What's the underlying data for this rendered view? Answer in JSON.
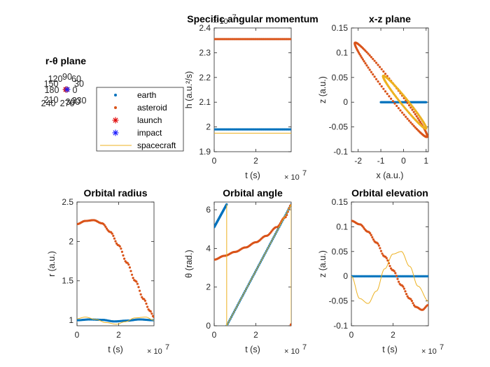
{
  "colors": {
    "earth": "#0072BD",
    "asteroid": "#D95319",
    "spacecraft": "#EDB120",
    "launch": "#e00000",
    "impact": "#1a1aff",
    "axis": "#262626"
  },
  "legend": {
    "items": [
      {
        "label": "earth",
        "marker": "dot",
        "color": "#0072BD"
      },
      {
        "label": "asteroid",
        "marker": "dot",
        "color": "#D95319"
      },
      {
        "label": "launch",
        "marker": "asterisk",
        "color": "#e00000"
      },
      {
        "label": "impact",
        "marker": "asterisk",
        "color": "#1a1aff"
      },
      {
        "label": "spacecraft",
        "marker": "line",
        "color": "#EDB120"
      }
    ]
  },
  "chart_data": [
    {
      "id": "polar",
      "type": "scatter",
      "title": "r-θ plane",
      "polar": true,
      "angle_labels": [
        "90",
        "60",
        "30",
        "0",
        "330",
        "300",
        "270",
        "240",
        "210",
        "180",
        "150",
        "120"
      ]
    },
    {
      "id": "h",
      "type": "line",
      "title": "Specific angular momentum",
      "xlabel": "t (s)",
      "ylabel": "h (a.u.²/s)",
      "xexp": "× 10",
      "xexp_pow": "7",
      "yexp": "× 10",
      "yexp_pow": "-7",
      "xlim": [
        0,
        3.7
      ],
      "ylim": [
        1.9,
        2.4
      ],
      "xticks": [
        0,
        2
      ],
      "yticks": [
        1.9,
        2.0,
        2.1,
        2.2,
        2.3,
        2.4
      ],
      "series": [
        {
          "name": "earth",
          "style": "dots",
          "color": "#0072BD",
          "x": [
            0,
            3.7
          ],
          "y": [
            1.99,
            1.99
          ]
        },
        {
          "name": "asteroid",
          "style": "dots",
          "color": "#D95319",
          "x": [
            0,
            3.7
          ],
          "y": [
            2.355,
            2.355
          ]
        },
        {
          "name": "spacecraft",
          "style": "line",
          "color": "#EDB120",
          "x": [
            0,
            3.7
          ],
          "y": [
            1.975,
            1.975
          ]
        }
      ]
    },
    {
      "id": "xz",
      "type": "line",
      "title": "x-z plane",
      "xlabel": "x (a.u.)",
      "ylabel": "z (a.u.)",
      "xlim": [
        -2.3,
        1.1
      ],
      "ylim": [
        -0.1,
        0.15
      ],
      "xticks": [
        -2,
        -1,
        0,
        1
      ],
      "yticks": [
        -0.1,
        -0.05,
        0,
        0.05,
        0.1,
        0.15
      ],
      "series": [
        {
          "name": "earth",
          "style": "dots",
          "color": "#0072BD",
          "x": [
            -1,
            -0.5,
            0,
            0.5,
            1
          ],
          "y": [
            0,
            0,
            0,
            0,
            0
          ]
        },
        {
          "name": "asteroid",
          "style": "dots",
          "color": "#D95319",
          "ellipse": {
            "cx": -0.55,
            "cz": 0.025,
            "ax": 1.6,
            "tilt": -0.0585,
            "w": 0.018
          }
        },
        {
          "name": "spacecraft",
          "style": "dots",
          "color": "#EDB120",
          "ellipse": {
            "cx": 0.05,
            "cz": 0,
            "ax": 0.95,
            "tilt": -0.055,
            "w": 0.011
          }
        }
      ]
    },
    {
      "id": "r",
      "type": "line",
      "title": "Orbital radius",
      "xlabel": "t (s)",
      "ylabel": "r (a.u.)",
      "xexp": "× 10",
      "xexp_pow": "7",
      "xlim": [
        0,
        3.7
      ],
      "ylim": [
        0.93,
        2.5
      ],
      "xticks": [
        0,
        2
      ],
      "yticks": [
        1,
        1.5,
        2,
        2.5
      ],
      "series": [
        {
          "name": "earth",
          "style": "dots",
          "color": "#0072BD",
          "x": [
            0,
            0.6,
            1.2,
            1.8,
            2.4,
            3.0,
            3.7
          ],
          "y": [
            1.0,
            1.01,
            1.005,
            0.985,
            0.995,
            1.01,
            1.0
          ]
        },
        {
          "name": "asteroid",
          "style": "dots",
          "color": "#D95319",
          "x": [
            0,
            0.4,
            0.8,
            1.2,
            1.6,
            2.0,
            2.4,
            2.8,
            3.2,
            3.5,
            3.7
          ],
          "y": [
            2.22,
            2.26,
            2.27,
            2.23,
            2.12,
            1.95,
            1.73,
            1.5,
            1.27,
            1.12,
            1.04
          ]
        },
        {
          "name": "spacecraft",
          "style": "line",
          "color": "#EDB120",
          "x": [
            0,
            0.4,
            0.9,
            1.4,
            1.9,
            2.3,
            2.8,
            3.3,
            3.7
          ],
          "y": [
            1.02,
            1.04,
            1.01,
            0.97,
            0.95,
            0.98,
            1.03,
            1.04,
            1.0
          ]
        }
      ]
    },
    {
      "id": "theta",
      "type": "line",
      "title": "Orbital angle",
      "xlabel": "t (s)",
      "ylabel": "θ (rad.)",
      "xexp": "× 10",
      "xexp_pow": "7",
      "xlim": [
        0,
        3.7
      ],
      "ylim": [
        0,
        6.4
      ],
      "xticks": [
        0,
        2
      ],
      "yticks": [
        0,
        2,
        4,
        6
      ],
      "series": [
        {
          "name": "earth",
          "style": "dots",
          "color": "#0072BD",
          "x": [
            0,
            0.6
          ],
          "y": [
            5.1,
            6.28
          ],
          "x2": [
            0.6,
            3.7
          ],
          "y2": [
            0,
            6.28
          ]
        },
        {
          "name": "asteroid",
          "style": "dots",
          "color": "#D95319",
          "x": [
            0,
            0.5,
            1.0,
            1.5,
            2.0,
            2.5,
            3.0,
            3.4,
            3.7
          ],
          "y": [
            3.42,
            3.62,
            3.82,
            4.05,
            4.32,
            4.65,
            5.1,
            5.6,
            6.25
          ]
        },
        {
          "name": "spacecraft",
          "style": "line",
          "color": "#EDB120",
          "x": [
            0.6,
            0.6,
            3.7,
            3.7
          ],
          "y": [
            6.28,
            0,
            6.28,
            0
          ]
        }
      ]
    },
    {
      "id": "z",
      "type": "line",
      "title": "Orbital elevation",
      "xlabel": "t (s)",
      "ylabel": "z (a.u.)",
      "xexp": "× 10",
      "xexp_pow": "7",
      "xlim": [
        0,
        3.7
      ],
      "ylim": [
        -0.1,
        0.15
      ],
      "xticks": [
        0,
        2
      ],
      "yticks": [
        -0.1,
        -0.05,
        0,
        0.05,
        0.1,
        0.15
      ],
      "series": [
        {
          "name": "earth",
          "style": "dots",
          "color": "#0072BD",
          "x": [
            0,
            3.7
          ],
          "y": [
            0,
            0
          ]
        },
        {
          "name": "asteroid",
          "style": "dots",
          "color": "#D95319",
          "x": [
            0,
            0.4,
            0.8,
            1.2,
            1.6,
            2.0,
            2.4,
            2.8,
            3.1,
            3.4,
            3.7
          ],
          "y": [
            0.112,
            0.105,
            0.09,
            0.068,
            0.04,
            0.012,
            -0.018,
            -0.045,
            -0.062,
            -0.068,
            -0.058
          ]
        },
        {
          "name": "spacecraft",
          "style": "line",
          "color": "#EDB120",
          "x": [
            0,
            0.4,
            0.8,
            1.2,
            1.6,
            2.0,
            2.4,
            2.8,
            3.2,
            3.7
          ],
          "y": [
            0,
            -0.045,
            -0.055,
            -0.03,
            0.015,
            0.045,
            0.05,
            0.02,
            -0.02,
            -0.05
          ]
        }
      ]
    }
  ]
}
